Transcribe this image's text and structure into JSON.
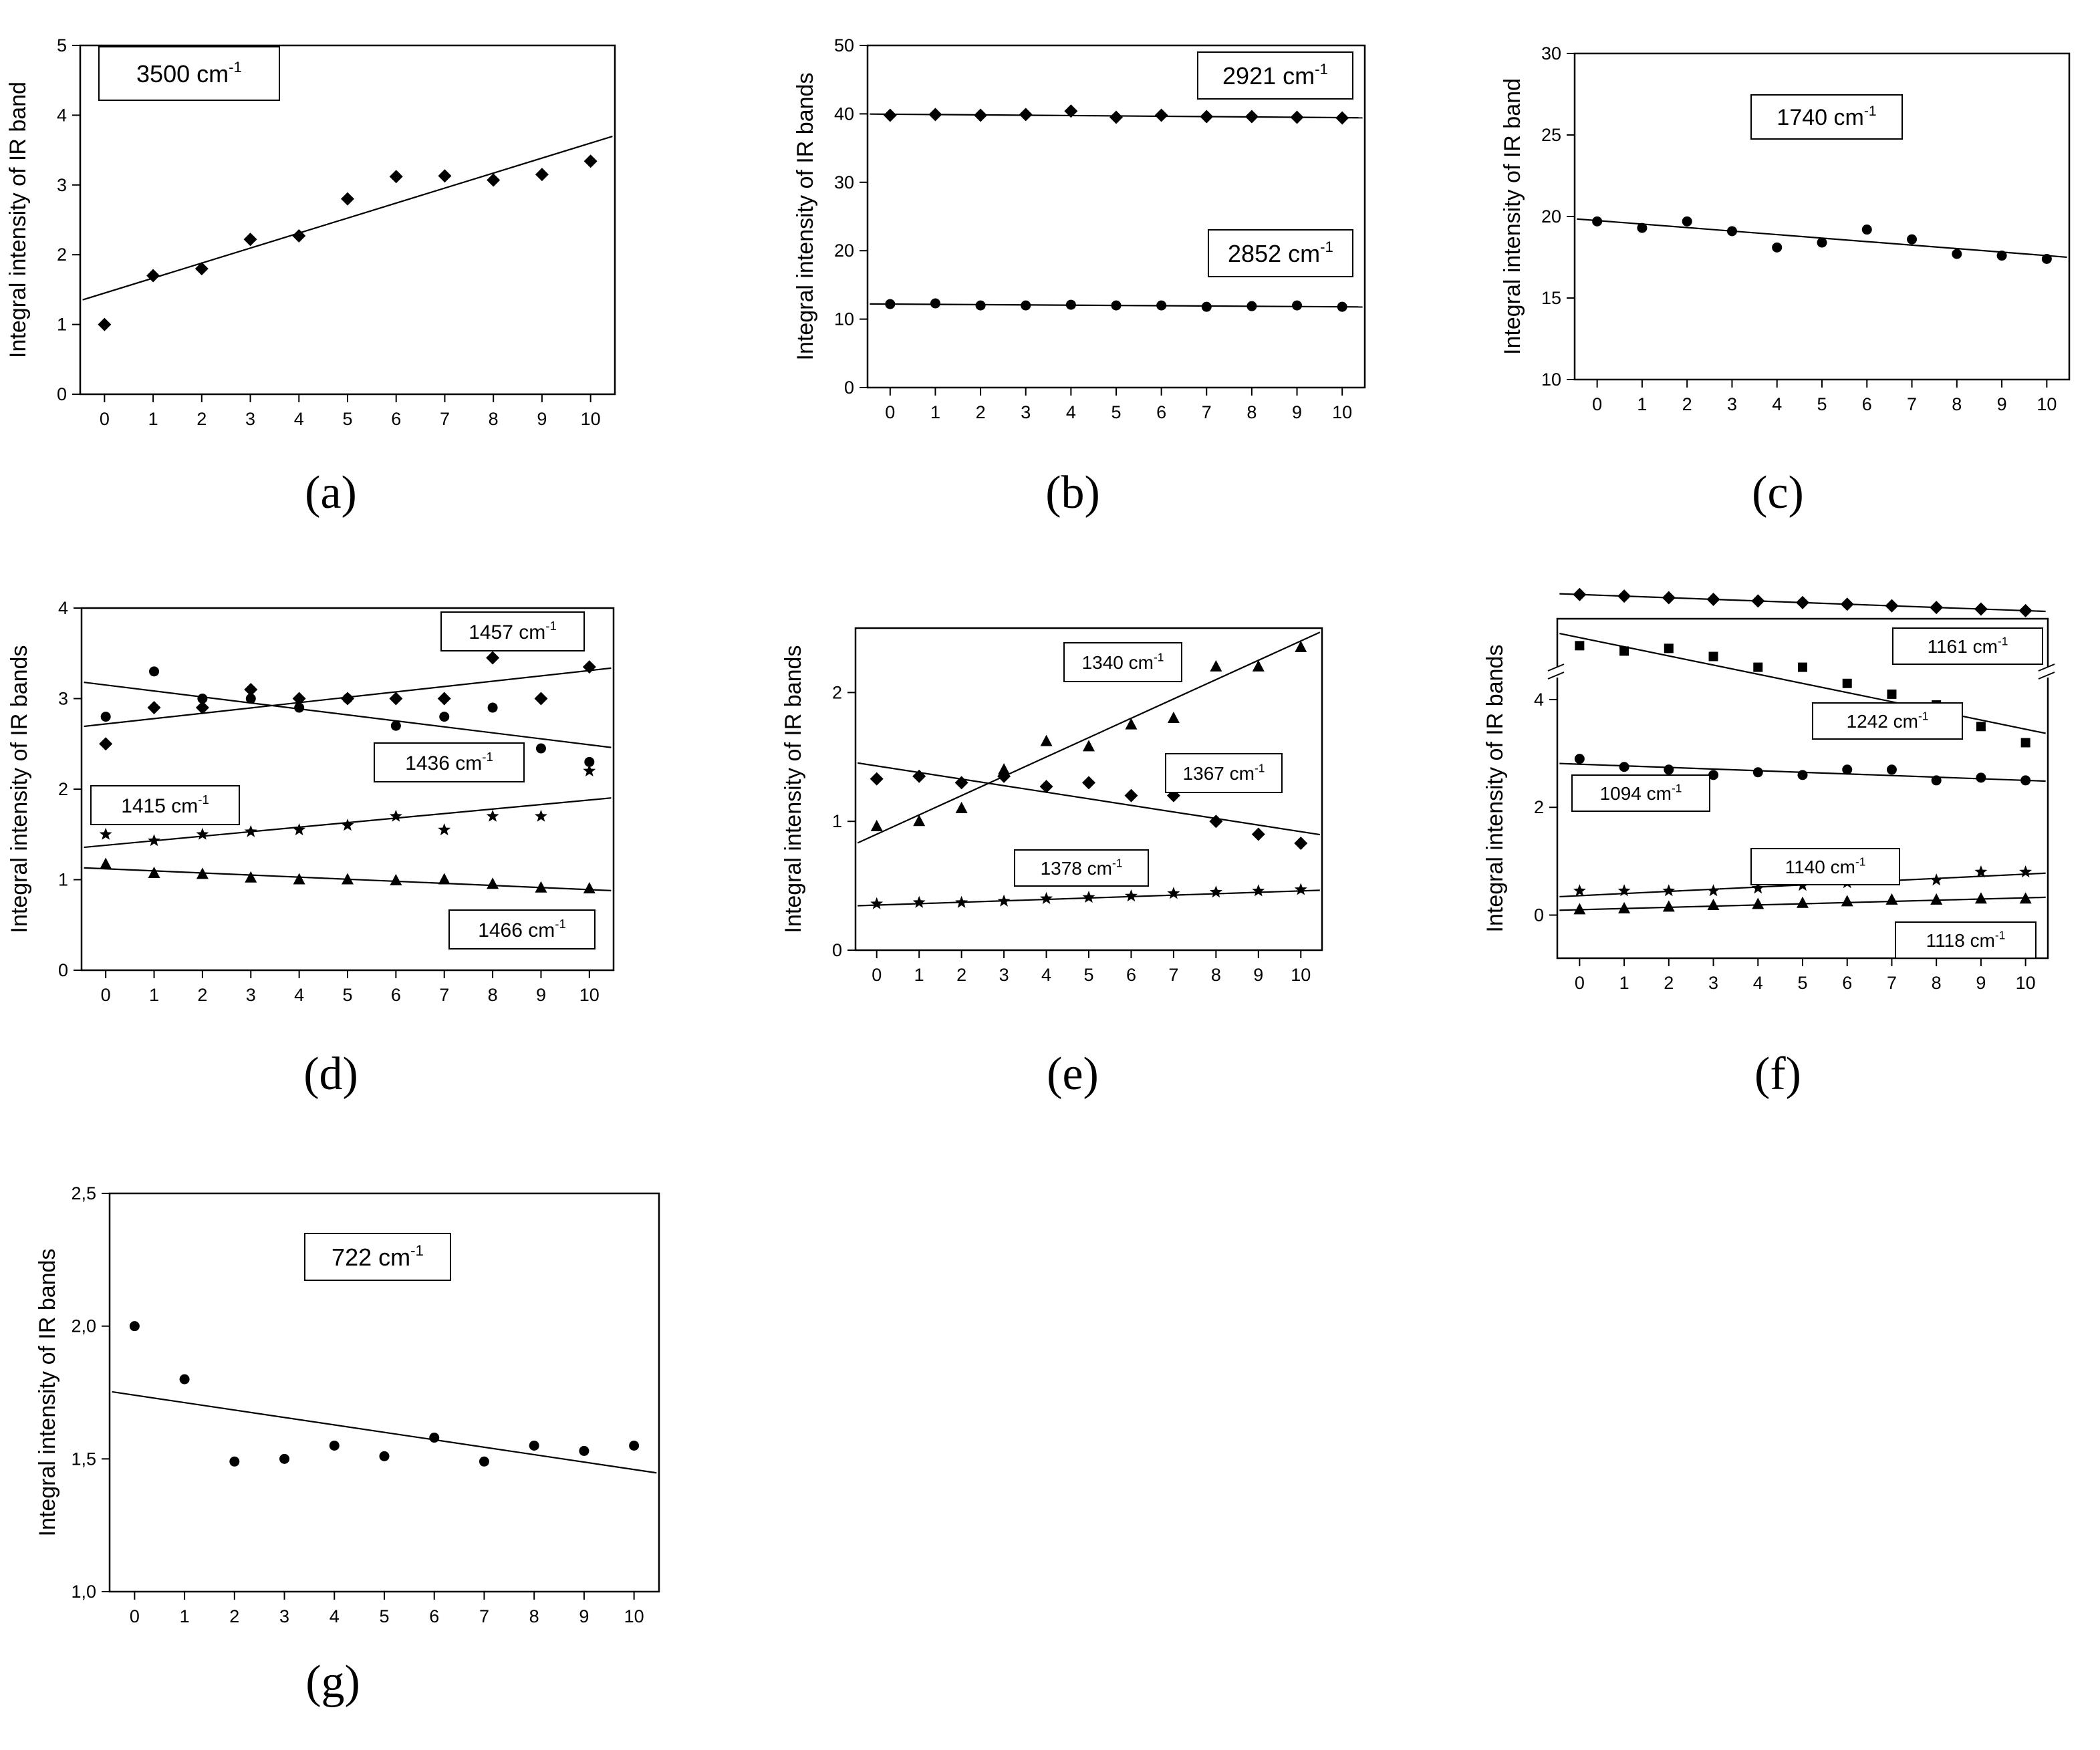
{
  "chart_data": [
    {
      "id": "a",
      "type": "scatter",
      "panel_label": "(a)",
      "ylabel": "Integral intensity of IR band",
      "xlim": [
        -0.5,
        10.5
      ],
      "ylim": [
        0,
        5
      ],
      "xticks": [
        0,
        1,
        2,
        3,
        4,
        5,
        6,
        7,
        8,
        9,
        10
      ],
      "yticks": [
        0,
        1,
        2,
        3,
        4,
        5
      ],
      "series": [
        {
          "name": "3500 cm-1",
          "marker": "diamond",
          "x": [
            0,
            1,
            2,
            3,
            4,
            5,
            6,
            7,
            8,
            9,
            10
          ],
          "y": [
            1.0,
            1.7,
            1.8,
            2.22,
            2.27,
            2.8,
            3.12,
            3.13,
            3.07,
            3.15,
            3.34
          ],
          "fit": [
            1.45,
            0.215
          ]
        }
      ],
      "annotations": [
        {
          "base": "3500 cm",
          "sup": "-1"
        }
      ]
    },
    {
      "id": "b",
      "type": "scatter",
      "panel_label": "(b)",
      "ylabel": "Integral intensity of IR bands",
      "xlim": [
        -0.5,
        10.5
      ],
      "ylim": [
        0,
        50
      ],
      "xticks": [
        0,
        1,
        2,
        3,
        4,
        5,
        6,
        7,
        8,
        9,
        10
      ],
      "yticks": [
        0,
        10,
        20,
        30,
        40,
        50
      ],
      "series": [
        {
          "name": "2921 cm-1",
          "marker": "diamond",
          "x": [
            0,
            1,
            2,
            3,
            4,
            5,
            6,
            7,
            8,
            9,
            10
          ],
          "y": [
            39.8,
            39.9,
            39.8,
            39.9,
            40.4,
            39.5,
            39.8,
            39.6,
            39.6,
            39.5,
            39.4
          ],
          "fit": [
            39.95,
            -0.05
          ]
        },
        {
          "name": "2852 cm-1",
          "marker": "circle",
          "x": [
            0,
            1,
            2,
            3,
            4,
            5,
            6,
            7,
            8,
            9,
            10
          ],
          "y": [
            12.2,
            12.3,
            12.0,
            12.0,
            12.1,
            12.0,
            12.0,
            11.8,
            11.9,
            12.0,
            11.8
          ],
          "fit": [
            12.2,
            -0.04
          ]
        }
      ],
      "annotations": [
        {
          "base": "2921 cm",
          "sup": "-1"
        },
        {
          "base": "2852 cm",
          "sup": "-1"
        }
      ]
    },
    {
      "id": "c",
      "type": "scatter",
      "panel_label": "(c)",
      "ylabel": "Integral intensity of IR band",
      "xlim": [
        -0.5,
        10.5
      ],
      "ylim": [
        10,
        30
      ],
      "xticks": [
        0,
        1,
        2,
        3,
        4,
        5,
        6,
        7,
        8,
        9,
        10
      ],
      "yticks": [
        10,
        15,
        20,
        25,
        30
      ],
      "series": [
        {
          "name": "1740 cm-1",
          "marker": "circle",
          "x": [
            0,
            1,
            2,
            3,
            4,
            5,
            6,
            7,
            8,
            9,
            10
          ],
          "y": [
            19.7,
            19.3,
            19.7,
            19.1,
            18.1,
            18.4,
            19.2,
            18.6,
            17.7,
            17.6,
            17.4
          ],
          "fit": [
            19.75,
            -0.215
          ]
        }
      ],
      "annotations": [
        {
          "base": "1740 cm",
          "sup": "-1"
        }
      ]
    },
    {
      "id": "d",
      "type": "scatter",
      "panel_label": "(d)",
      "ylabel": "Integral intensity of IR bands",
      "xlim": [
        -0.5,
        10.5
      ],
      "ylim": [
        0,
        4
      ],
      "xticks": [
        0,
        1,
        2,
        3,
        4,
        5,
        6,
        7,
        8,
        9,
        10
      ],
      "yticks": [
        0,
        1,
        2,
        3,
        4
      ],
      "series": [
        {
          "name": "1457 cm-1",
          "marker": "diamond",
          "x": [
            0,
            1,
            2,
            3,
            4,
            5,
            6,
            7,
            8,
            9,
            10
          ],
          "y": [
            2.5,
            2.9,
            2.9,
            3.1,
            3.0,
            3.0,
            3.0,
            3.0,
            3.45,
            3.0,
            3.35
          ],
          "fit": [
            2.72,
            0.059
          ]
        },
        {
          "name": "1436 cm-1",
          "marker": "circle",
          "x": [
            0,
            1,
            2,
            3,
            4,
            5,
            6,
            7,
            8,
            9,
            10
          ],
          "y": [
            2.8,
            3.3,
            3.0,
            3.0,
            2.9,
            3.0,
            2.7,
            2.8,
            2.9,
            2.45,
            2.3
          ],
          "fit": [
            3.15,
            -0.066
          ]
        },
        {
          "name": "1415 cm-1",
          "marker": "star",
          "x": [
            0,
            1,
            2,
            3,
            4,
            5,
            6,
            7,
            8,
            9,
            10
          ],
          "y": [
            1.5,
            1.43,
            1.5,
            1.53,
            1.55,
            1.6,
            1.7,
            1.55,
            1.7,
            1.7,
            2.2
          ],
          "fit": [
            1.38,
            0.05
          ]
        },
        {
          "name": "1466 cm-1",
          "marker": "triangle",
          "x": [
            0,
            1,
            2,
            3,
            4,
            5,
            6,
            7,
            8,
            9,
            10
          ],
          "y": [
            1.17,
            1.07,
            1.06,
            1.02,
            1.0,
            1.0,
            0.99,
            1.0,
            0.95,
            0.91,
            0.9
          ],
          "fit": [
            1.12,
            -0.023
          ]
        }
      ],
      "annotations": [
        {
          "base": "1457 cm",
          "sup": "-1"
        },
        {
          "base": "1436 cm",
          "sup": "-1"
        },
        {
          "base": "1415 cm",
          "sup": "-1"
        },
        {
          "base": "1466 cm",
          "sup": "-1"
        }
      ]
    },
    {
      "id": "e",
      "type": "scatter",
      "panel_label": "(e)",
      "ylabel": "Integral intensity of IR bands",
      "xlim": [
        -0.5,
        10.5
      ],
      "ylim": [
        0,
        2.5
      ],
      "xticks": [
        0,
        1,
        2,
        3,
        4,
        5,
        6,
        7,
        8,
        9,
        10
      ],
      "yticks": [
        0,
        1,
        2
      ],
      "series": [
        {
          "name": "1340 cm-1",
          "marker": "triangle",
          "x": [
            0,
            1,
            2,
            3,
            4,
            5,
            6,
            7,
            8,
            9,
            10
          ],
          "y": [
            0.96,
            1.0,
            1.1,
            1.4,
            1.62,
            1.58,
            1.75,
            1.8,
            2.2,
            2.2,
            2.35
          ],
          "fit": [
            0.9,
            0.15
          ]
        },
        {
          "name": "1367 cm-1",
          "marker": "diamond",
          "x": [
            0,
            1,
            2,
            3,
            4,
            5,
            6,
            7,
            8,
            9,
            10
          ],
          "y": [
            1.33,
            1.35,
            1.3,
            1.35,
            1.27,
            1.3,
            1.2,
            1.2,
            1.0,
            0.9,
            0.83
          ],
          "fit": [
            1.43,
            -0.051
          ]
        },
        {
          "name": "1378 cm-1",
          "marker": "star",
          "x": [
            0,
            1,
            2,
            3,
            4,
            5,
            6,
            7,
            8,
            9,
            10
          ],
          "y": [
            0.36,
            0.37,
            0.37,
            0.38,
            0.4,
            0.41,
            0.42,
            0.44,
            0.45,
            0.46,
            0.47
          ],
          "fit": [
            0.35,
            0.011
          ]
        }
      ],
      "annotations": [
        {
          "base": "1340 cm",
          "sup": "-1"
        },
        {
          "base": "1367 cm",
          "sup": "-1"
        },
        {
          "base": "1378 cm",
          "sup": "-1"
        }
      ]
    },
    {
      "id": "f",
      "type": "scatter",
      "panel_label": "(f)",
      "ylabel": "Integral intensity of IR bands",
      "xlim": [
        -0.5,
        10.5
      ],
      "ylim": [
        -0.8,
        5.5
      ],
      "axis_break": true,
      "xticks": [
        0,
        1,
        2,
        3,
        4,
        5,
        6,
        7,
        8,
        9,
        10
      ],
      "yticks": [
        0,
        2,
        4
      ],
      "series": [
        {
          "name": "1161 cm-1",
          "marker": "diamond",
          "x": [
            0,
            1,
            2,
            3,
            4,
            5,
            6,
            7,
            8,
            9,
            10
          ],
          "y": [
            5.0,
            4.95,
            4.9,
            4.85,
            4.8,
            4.75,
            4.7,
            4.65,
            4.6,
            4.55,
            4.5
          ],
          "fit": [
            5.0,
            -0.05
          ],
          "above_break": true
        },
        {
          "name": "1242 cm-1",
          "marker": "square",
          "x": [
            0,
            1,
            2,
            3,
            4,
            5,
            6,
            7,
            8,
            9,
            10
          ],
          "y": [
            5.0,
            4.9,
            4.95,
            4.8,
            4.6,
            4.6,
            4.3,
            4.1,
            3.9,
            3.5,
            3.2
          ],
          "fit": [
            5.15,
            -0.17
          ]
        },
        {
          "name": "1094 cm-1",
          "marker": "circle",
          "x": [
            0,
            1,
            2,
            3,
            4,
            5,
            6,
            7,
            8,
            9,
            10
          ],
          "y": [
            2.9,
            2.75,
            2.7,
            2.6,
            2.65,
            2.6,
            2.7,
            2.7,
            2.5,
            2.55,
            2.5
          ],
          "fit": [
            2.8,
            -0.03
          ]
        },
        {
          "name": "1140 cm-1",
          "marker": "star",
          "x": [
            0,
            1,
            2,
            3,
            4,
            5,
            6,
            7,
            8,
            9,
            10
          ],
          "y": [
            0.45,
            0.45,
            0.45,
            0.45,
            0.5,
            0.55,
            0.6,
            0.65,
            0.65,
            0.8,
            0.8
          ],
          "fit": [
            0.36,
            0.04
          ]
        },
        {
          "name": "1118 cm-1",
          "marker": "triangle",
          "x": [
            0,
            1,
            2,
            3,
            4,
            5,
            6,
            7,
            8,
            9,
            10
          ],
          "y": [
            0.1,
            0.12,
            0.15,
            0.18,
            0.2,
            0.22,
            0.25,
            0.28,
            0.28,
            0.3,
            0.3
          ],
          "fit": [
            0.1,
            0.022
          ]
        }
      ],
      "annotations": [
        {
          "base": "1161 cm",
          "sup": "-1"
        },
        {
          "base": "1242 cm",
          "sup": "-1"
        },
        {
          "base": "1094 cm",
          "sup": "-1"
        },
        {
          "base": "1140 cm",
          "sup": "-1"
        },
        {
          "base": "1118 cm",
          "sup": "-1"
        }
      ]
    },
    {
      "id": "g",
      "type": "scatter",
      "panel_label": "(g)",
      "ylabel": "Integral intensity of IR bands",
      "xlim": [
        -0.5,
        10.5
      ],
      "ylim": [
        1.0,
        2.5
      ],
      "xticks": [
        0,
        1,
        2,
        3,
        4,
        5,
        6,
        7,
        8,
        9,
        10
      ],
      "yticks": [
        1.0,
        1.5,
        2.0,
        2.5
      ],
      "ytick_labels": [
        "1,0",
        "1,5",
        "2,0",
        "2,5"
      ],
      "series": [
        {
          "name": "722 cm-1",
          "marker": "circle",
          "x": [
            0,
            1,
            2,
            3,
            4,
            5,
            6,
            7,
            8,
            9,
            10
          ],
          "y": [
            2.0,
            1.8,
            1.49,
            1.5,
            1.55,
            1.51,
            1.58,
            1.49,
            1.55,
            1.53,
            1.55
          ],
          "fit": [
            1.74,
            -0.028
          ]
        }
      ],
      "annotations": [
        {
          "base": "722 cm",
          "sup": "-1"
        }
      ]
    }
  ]
}
